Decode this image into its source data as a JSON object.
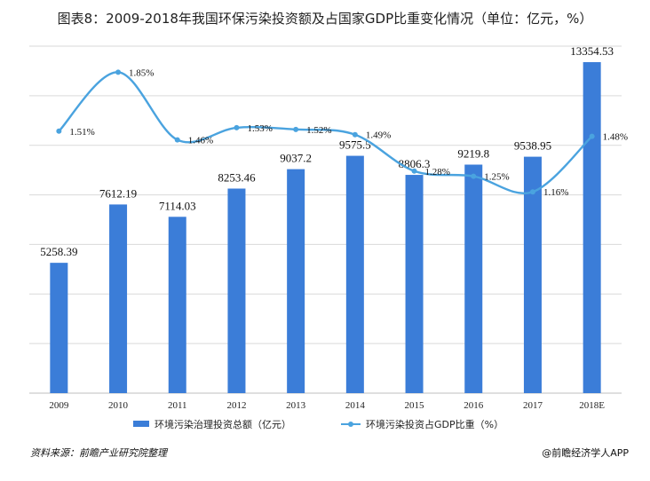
{
  "title": "图表8：2009-2018年我国环保污染投资额及占国家GDP比重变化情况（单位：亿元，%）",
  "source": "资料来源：前瞻产业研究院整理",
  "brand": "@前瞻经济学人APP",
  "colors": {
    "bar": "#3b7dd8",
    "line": "#4aa3df",
    "grid": "#d9d9d9"
  },
  "chart_data": {
    "type": "bar+line",
    "categories": [
      "2009",
      "2010",
      "2011",
      "2012",
      "2013",
      "2014",
      "2015",
      "2016",
      "2017",
      "2018E"
    ],
    "series": [
      {
        "name": "环境污染治理投资总额（亿元）",
        "type": "bar",
        "axis": "left",
        "values": [
          5258.39,
          7612.19,
          7114.03,
          8253.46,
          9037.2,
          9575.5,
          8806.3,
          9219.8,
          9538.95,
          13354.53
        ],
        "labels": [
          "5258.39",
          "7612.19",
          "7114.03",
          "8253.46",
          "9037.2",
          "9575.5",
          "8806.3",
          "9219.8",
          "9538.95",
          "13354.53"
        ]
      },
      {
        "name": "环境污染投资占GDP比重（%）",
        "type": "line",
        "axis": "right",
        "smooth": true,
        "values": [
          1.51,
          1.85,
          1.46,
          1.53,
          1.52,
          1.49,
          1.28,
          1.25,
          1.16,
          1.48
        ],
        "labels": [
          "1.51%",
          "1.85%",
          "1.46%",
          "1.53%",
          "1.52%",
          "1.49%",
          "1.28%",
          "1.25%",
          "1.16%",
          "1.48%"
        ]
      }
    ],
    "ylim_left": [
      0,
      14000
    ],
    "ylim_right": [
      0,
      2
    ],
    "grid": true,
    "legend_position": "bottom"
  }
}
